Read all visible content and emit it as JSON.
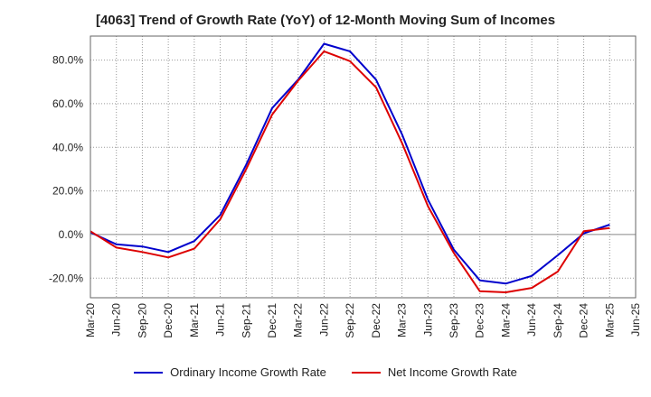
{
  "chart_data": {
    "type": "line",
    "title": "[4063]  Trend of Growth Rate (YoY) of 12-Month Moving Sum of Incomes",
    "xlabel": "",
    "ylabel": "",
    "x": [
      "Mar-20",
      "Jun-20",
      "Sep-20",
      "Dec-20",
      "Mar-21",
      "Jun-21",
      "Sep-21",
      "Dec-21",
      "Mar-22",
      "Jun-22",
      "Sep-22",
      "Dec-22",
      "Mar-23",
      "Jun-23",
      "Sep-23",
      "Dec-23",
      "Mar-24",
      "Jun-24",
      "Sep-24",
      "Dec-24",
      "Mar-25",
      "Jun-25"
    ],
    "ylim": [
      -29,
      91
    ],
    "yticks": [
      -20,
      0,
      20,
      40,
      60,
      80
    ],
    "ytick_labels": [
      "-20.0%",
      "0.0%",
      "20.0%",
      "40.0%",
      "60.0%",
      "80.0%"
    ],
    "grid": true,
    "legend_position": "bottom",
    "series": [
      {
        "name": "Ordinary Income Growth Rate",
        "color": "#0000cc",
        "values": [
          1.0,
          -4.5,
          -5.5,
          -8.0,
          -3.0,
          9.0,
          32.0,
          58.0,
          71.0,
          87.5,
          84.0,
          71.0,
          46.0,
          16.0,
          -7.0,
          -21.0,
          -22.5,
          -19.0,
          -9.5,
          0.5,
          4.5,
          null
        ]
      },
      {
        "name": "Net Income Growth Rate",
        "color": "#dd0000",
        "values": [
          1.5,
          -6.0,
          -8.0,
          -10.5,
          -6.5,
          7.0,
          30.0,
          55.0,
          70.5,
          84.0,
          79.5,
          67.5,
          42.0,
          13.0,
          -8.5,
          -26.0,
          -26.5,
          -24.5,
          -17.0,
          1.5,
          3.0,
          null
        ]
      }
    ]
  }
}
